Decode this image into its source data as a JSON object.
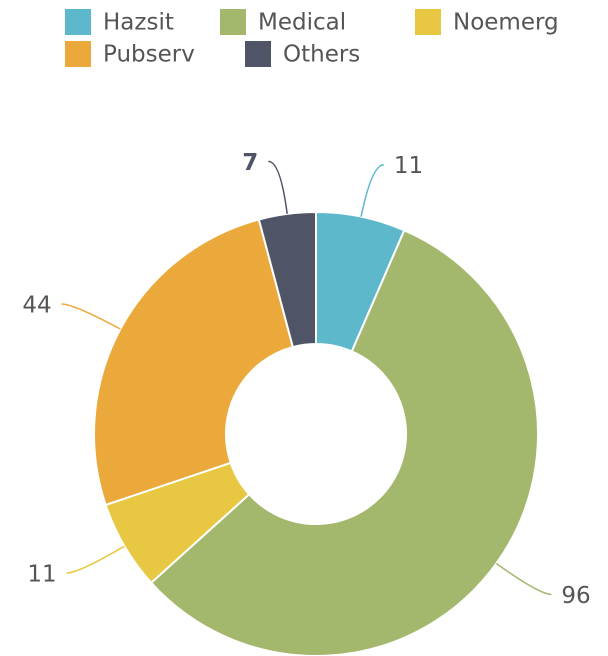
{
  "chart_data": {
    "type": "donut",
    "categories": [
      "Hazsit",
      "Medical",
      "Noemerg",
      "Pubserv",
      "Others"
    ],
    "values": [
      11,
      96,
      11,
      44,
      7
    ],
    "colors": [
      "#5db8cc",
      "#a4b86d",
      "#e8c842",
      "#eca93b",
      "#4f5567"
    ],
    "highlighted": "Others",
    "legend": "top"
  }
}
